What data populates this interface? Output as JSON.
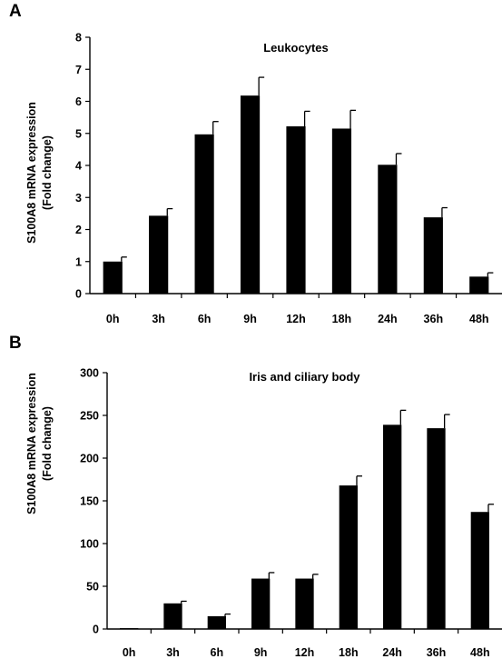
{
  "figure": {
    "panels": [
      {
        "label": "A"
      },
      {
        "label": "B"
      }
    ]
  },
  "chart_data": [
    {
      "type": "bar",
      "panel": "A",
      "title": "Leukocytes",
      "xlabel": "",
      "ylabel": "S100A8 mRNA expression\n(Fold change)",
      "ylim": [
        0,
        8
      ],
      "yticks": [
        0,
        1,
        2,
        3,
        4,
        5,
        6,
        7,
        8
      ],
      "categories": [
        "0h",
        "3h",
        "6h",
        "9h",
        "12h",
        "18h",
        "24h",
        "36h",
        "48h"
      ],
      "values": [
        1.0,
        2.43,
        4.97,
        6.18,
        5.22,
        5.15,
        4.02,
        2.38,
        0.53
      ],
      "errors": [
        0.14,
        0.22,
        0.4,
        0.57,
        0.47,
        0.57,
        0.35,
        0.3,
        0.12
      ],
      "bar_color": "#000000",
      "grid": false,
      "legend": "none"
    },
    {
      "type": "bar",
      "panel": "B",
      "title": "Iris and ciliary body",
      "xlabel": "",
      "ylabel": "S100A8 mRNA expression\n(Fold change)",
      "ylim": [
        0,
        300
      ],
      "yticks": [
        0,
        50,
        100,
        150,
        200,
        250,
        300
      ],
      "categories": [
        "0h",
        "3h",
        "6h",
        "9h",
        "12h",
        "18h",
        "24h",
        "36h",
        "48h"
      ],
      "values": [
        1,
        30,
        15,
        59,
        59,
        168,
        239,
        235,
        137
      ],
      "errors": [
        0,
        2.5,
        2.5,
        7,
        5,
        11,
        17,
        16,
        9
      ],
      "bar_color": "#000000",
      "grid": false,
      "legend": "none"
    }
  ]
}
